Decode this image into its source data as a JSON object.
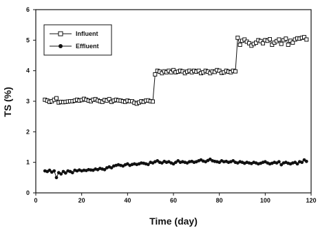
{
  "chart_data": {
    "type": "line",
    "xlabel": "Time (day)",
    "ylabel": "TS (%)",
    "xlim": [
      0,
      120
    ],
    "ylim": [
      0,
      6
    ],
    "xticks": [
      0,
      20,
      40,
      60,
      80,
      100,
      120
    ],
    "yticks": [
      0,
      1,
      2,
      3,
      4,
      5,
      6
    ],
    "grid": false,
    "legend_position": "top-left",
    "series": [
      {
        "name": "Influent",
        "marker": "open-square",
        "color": "#111111",
        "x": [
          4,
          5,
          6,
          7,
          8,
          9,
          10,
          11,
          12,
          13,
          14,
          15,
          16,
          17,
          18,
          19,
          20,
          21,
          22,
          23,
          24,
          25,
          26,
          27,
          28,
          29,
          30,
          31,
          32,
          33,
          34,
          35,
          36,
          37,
          38,
          39,
          40,
          41,
          42,
          43,
          44,
          45,
          46,
          47,
          48,
          49,
          50,
          51,
          52,
          53,
          54,
          55,
          56,
          57,
          58,
          59,
          60,
          61,
          62,
          63,
          64,
          65,
          66,
          67,
          68,
          69,
          70,
          71,
          72,
          73,
          74,
          75,
          76,
          77,
          78,
          79,
          80,
          81,
          82,
          83,
          84,
          85,
          86,
          87,
          88,
          89,
          90,
          91,
          92,
          93,
          94,
          95,
          96,
          97,
          98,
          99,
          100,
          101,
          102,
          103,
          104,
          105,
          106,
          107,
          108,
          109,
          110,
          111,
          112,
          113,
          114,
          115,
          116,
          117,
          118
        ],
        "y": [
          3.05,
          3.02,
          2.98,
          3.0,
          3.05,
          3.1,
          2.96,
          2.98,
          2.97,
          2.98,
          2.99,
          3.0,
          3.0,
          3.02,
          3.05,
          3.02,
          3.04,
          3.08,
          3.05,
          3.02,
          3.0,
          3.05,
          3.07,
          3.03,
          3.0,
          2.98,
          3.04,
          3.02,
          3.07,
          2.98,
          3.02,
          3.05,
          3.03,
          3.02,
          3.0,
          2.98,
          3.02,
          3.0,
          3.0,
          2.95,
          2.92,
          2.96,
          3.0,
          2.98,
          3.02,
          3.03,
          3.0,
          2.99,
          3.88,
          4.0,
          3.97,
          3.92,
          3.98,
          3.95,
          4.0,
          3.95,
          4.02,
          3.95,
          3.97,
          4.0,
          3.98,
          3.92,
          3.97,
          4.0,
          3.95,
          4.0,
          3.97,
          4.0,
          3.92,
          3.95,
          4.0,
          3.97,
          3.92,
          3.98,
          3.96,
          4.02,
          4.0,
          3.93,
          3.95,
          4.0,
          3.97,
          3.95,
          4.0,
          3.98,
          5.08,
          4.85,
          4.98,
          5.02,
          4.95,
          4.9,
          4.82,
          4.88,
          4.92,
          5.0,
          4.97,
          4.9,
          5.0,
          4.98,
          5.03,
          4.85,
          4.92,
          4.97,
          5.02,
          4.88,
          5.0,
          5.05,
          4.85,
          4.98,
          4.92,
          5.02,
          5.06,
          5.05,
          5.08,
          5.1,
          5.02
        ],
        "display_y": [
          3.05,
          3.02,
          2.98,
          3.0,
          3.05,
          3.1,
          2.96,
          2.98,
          2.97,
          2.98,
          2.99,
          3.0,
          3.0,
          3.02,
          3.05,
          3.02,
          3.04,
          3.08,
          3.05,
          3.02,
          3.0,
          3.05,
          3.07,
          3.03,
          3.0,
          2.98,
          3.04,
          3.02,
          3.07,
          2.98,
          3.02,
          3.05,
          3.03,
          3.02,
          3.0,
          2.98,
          3.02,
          3.0,
          3.0,
          2.95,
          2.92,
          2.96,
          3.0,
          2.98,
          3.02,
          3.03,
          3.0,
          2.99,
          3.88,
          4.0,
          3.97,
          3.92,
          3.98,
          3.95,
          4.0,
          3.95,
          4.02,
          3.95,
          3.97,
          4.0,
          3.98,
          3.92,
          3.97,
          4.0,
          3.95,
          4.0,
          3.97,
          4.0,
          3.92,
          3.95,
          4.0,
          3.97,
          3.92,
          3.98,
          3.96,
          4.02,
          4.0,
          3.93,
          3.95,
          4.0,
          3.97,
          3.95,
          4.0,
          3.98,
          5.08,
          4.85,
          4.98,
          5.02,
          4.95,
          4.9,
          4.82,
          4.88,
          4.92,
          5.0,
          4.97,
          4.9,
          5.0,
          4.98,
          5.03,
          4.85,
          4.92,
          4.97,
          5.02,
          4.88,
          5.0,
          5.05,
          4.85,
          4.98,
          4.92,
          5.02,
          5.06,
          5.05,
          5.08,
          5.1,
          5.02
        ]
      },
      {
        "name": "Effluent",
        "marker": "filled-circle",
        "color": "#111111",
        "x": [
          4,
          5,
          6,
          7,
          8,
          9,
          10,
          11,
          12,
          13,
          14,
          15,
          16,
          17,
          18,
          19,
          20,
          21,
          22,
          23,
          24,
          25,
          26,
          27,
          28,
          29,
          30,
          31,
          32,
          33,
          34,
          35,
          36,
          37,
          38,
          39,
          40,
          41,
          42,
          43,
          44,
          45,
          46,
          47,
          48,
          49,
          50,
          51,
          52,
          53,
          54,
          55,
          56,
          57,
          58,
          59,
          60,
          61,
          62,
          63,
          64,
          65,
          66,
          67,
          68,
          69,
          70,
          71,
          72,
          73,
          74,
          75,
          76,
          77,
          78,
          79,
          80,
          81,
          82,
          83,
          84,
          85,
          86,
          87,
          88,
          89,
          90,
          91,
          92,
          93,
          94,
          95,
          96,
          97,
          98,
          99,
          100,
          101,
          102,
          103,
          104,
          105,
          106,
          107,
          108,
          109,
          110,
          111,
          112,
          113,
          114,
          115,
          116,
          117,
          118
        ],
        "y": [
          0.72,
          0.7,
          0.74,
          0.68,
          0.72,
          0.5,
          0.66,
          0.62,
          0.7,
          0.65,
          0.72,
          0.7,
          0.66,
          0.74,
          0.72,
          0.75,
          0.72,
          0.74,
          0.73,
          0.76,
          0.75,
          0.74,
          0.78,
          0.76,
          0.8,
          0.78,
          0.76,
          0.82,
          0.85,
          0.82,
          0.88,
          0.9,
          0.92,
          0.9,
          0.88,
          0.92,
          0.95,
          0.9,
          0.93,
          0.95,
          0.93,
          0.95,
          0.98,
          0.97,
          0.95,
          0.93,
          1.0,
          0.98,
          1.02,
          1.05,
          1.0,
          0.98,
          1.03,
          1.0,
          1.02,
          0.98,
          0.95,
          1.0,
          1.05,
          1.0,
          1.02,
          1.0,
          0.98,
          1.02,
          1.03,
          1.0,
          1.02,
          1.05,
          1.08,
          1.04,
          1.02,
          1.06,
          1.1,
          1.05,
          1.03,
          1.02,
          1.0,
          1.05,
          1.02,
          1.03,
          1.0,
          1.02,
          1.05,
          1.0,
          0.98,
          1.02,
          1.0,
          0.97,
          1.0,
          0.98,
          0.96,
          1.0,
          0.98,
          0.95,
          0.97,
          1.0,
          1.02,
          0.98,
          0.95,
          0.97,
          1.0,
          0.98,
          1.02,
          0.92,
          0.98,
          1.0,
          0.97,
          0.95,
          0.98,
          1.0,
          0.95,
          1.02,
          1.0,
          1.08,
          1.03
        ],
        "display_y": [
          0.72,
          0.7,
          0.74,
          0.68,
          0.72,
          0.5,
          0.66,
          0.62,
          0.7,
          0.65,
          0.72,
          0.7,
          0.66,
          0.74,
          0.72,
          0.75,
          0.72,
          0.74,
          0.73,
          0.76,
          0.75,
          0.74,
          0.78,
          0.76,
          0.8,
          0.78,
          0.76,
          0.82,
          0.85,
          0.82,
          0.88,
          0.9,
          0.92,
          0.9,
          0.88,
          0.92,
          0.95,
          0.9,
          0.93,
          0.95,
          0.93,
          0.95,
          0.98,
          0.97,
          0.95,
          0.93,
          1.0,
          0.98,
          1.02,
          1.05,
          1.0,
          0.98,
          1.03,
          1.0,
          1.02,
          0.98,
          0.95,
          1.0,
          1.05,
          1.0,
          1.02,
          1.0,
          0.98,
          1.02,
          1.03,
          1.0,
          1.02,
          1.05,
          1.08,
          1.04,
          1.02,
          1.06,
          1.1,
          1.05,
          1.03,
          1.02,
          1.0,
          1.05,
          1.02,
          1.03,
          1.0,
          1.02,
          1.05,
          1.0,
          0.98,
          1.02,
          1.0,
          0.97,
          1.0,
          0.98,
          0.96,
          1.0,
          0.98,
          0.95,
          0.97,
          1.0,
          1.02,
          0.98,
          0.95,
          0.97,
          1.0,
          0.98,
          1.02,
          0.92,
          0.98,
          1.0,
          0.97,
          0.95,
          0.98,
          1.0,
          0.95,
          1.02,
          1.0,
          1.08,
          1.03
        ]
      }
    ]
  }
}
